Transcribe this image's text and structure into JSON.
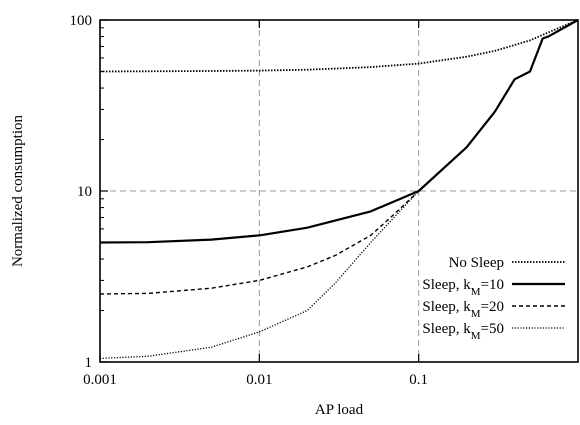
{
  "chart_data": {
    "type": "line",
    "xlabel": "AP load",
    "ylabel": "Normalized consumption",
    "xscale": "log",
    "yscale": "log",
    "xlim": [
      0.001,
      1
    ],
    "ylim": [
      1,
      100
    ],
    "x_ticks": [
      0.001,
      0.01,
      0.1
    ],
    "x_tick_labels": [
      "0.001",
      "0.01",
      "0.1"
    ],
    "y_ticks": [
      1,
      10,
      100
    ],
    "y_tick_labels": [
      "1",
      "10",
      "100"
    ],
    "grid": true,
    "legend_position": "bottom-right",
    "series": [
      {
        "name": "No Sleep",
        "legend_parts": [
          {
            "t": "No Sleep",
            "sub": false
          }
        ],
        "style": "dotted",
        "color": "#000000",
        "x": [
          0.001,
          0.002,
          0.005,
          0.01,
          0.02,
          0.05,
          0.1,
          0.2,
          0.3,
          0.5,
          0.7,
          1.0
        ],
        "y": [
          50,
          50.1,
          50.3,
          50.6,
          51.2,
          53,
          55.6,
          61,
          66,
          76,
          87,
          100
        ]
      },
      {
        "name": "Sleep, k_M=10",
        "legend_parts": [
          {
            "t": "Sleep, k",
            "sub": false
          },
          {
            "t": "M",
            "sub": true
          },
          {
            "t": "=10",
            "sub": false
          }
        ],
        "style": "solid",
        "color": "#000000",
        "x": [
          0.001,
          0.002,
          0.005,
          0.01,
          0.02,
          0.05,
          0.1,
          0.2,
          0.3,
          0.4,
          0.5,
          0.6,
          0.65,
          1.0
        ],
        "y": [
          5,
          5.02,
          5.2,
          5.5,
          6.1,
          7.6,
          10,
          18,
          29,
          45,
          50,
          78,
          80,
          100
        ]
      },
      {
        "name": "Sleep, k_M=20",
        "legend_parts": [
          {
            "t": "Sleep, k",
            "sub": false
          },
          {
            "t": "M",
            "sub": true
          },
          {
            "t": "=20",
            "sub": false
          }
        ],
        "style": "dashed",
        "color": "#000000",
        "x": [
          0.001,
          0.002,
          0.005,
          0.01,
          0.02,
          0.03,
          0.05,
          0.07,
          0.1
        ],
        "y": [
          2.5,
          2.52,
          2.7,
          3.0,
          3.6,
          4.2,
          5.5,
          7.3,
          10
        ]
      },
      {
        "name": "Sleep, k_M=50",
        "legend_parts": [
          {
            "t": "Sleep, k",
            "sub": false
          },
          {
            "t": "M",
            "sub": true
          },
          {
            "t": "=50",
            "sub": false
          }
        ],
        "style": "dotted-fine",
        "color": "#000000",
        "x": [
          0.001,
          0.002,
          0.005,
          0.01,
          0.02,
          0.03,
          0.05,
          0.07,
          0.1
        ],
        "y": [
          1.05,
          1.08,
          1.22,
          1.5,
          2.0,
          2.9,
          5.0,
          7.0,
          10
        ]
      }
    ]
  }
}
